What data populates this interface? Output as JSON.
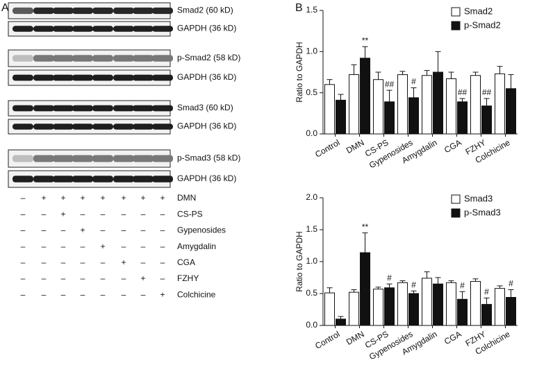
{
  "panel_labels": [
    "A",
    "B"
  ],
  "blots": [
    "Smad2 (60 kD)",
    "GAPDH (36 kD)",
    "p-Smad2 (58 kD)",
    "GAPDH (36 kD)",
    "Smad3 (60 kD)",
    "GAPDH (36 kD)",
    "p-Smad3 (58 kD)",
    "GAPDH (36 kD)"
  ],
  "treatments": [
    {
      "label": "DMN",
      "signs": [
        "–",
        "+",
        "+",
        "+",
        "+",
        "+",
        "+",
        "+"
      ]
    },
    {
      "label": "CS-PS",
      "signs": [
        "–",
        "–",
        "+",
        "–",
        "–",
        "–",
        "–",
        "–"
      ]
    },
    {
      "label": "Gypenosides",
      "signs": [
        "–",
        "–",
        "–",
        "+",
        "–",
        "–",
        "–",
        "–"
      ]
    },
    {
      "label": "Amygdalin",
      "signs": [
        "–",
        "–",
        "–",
        "–",
        "+",
        "–",
        "–",
        "–"
      ]
    },
    {
      "label": "CGA",
      "signs": [
        "–",
        "–",
        "–",
        "–",
        "–",
        "+",
        "–",
        "–"
      ]
    },
    {
      "label": "FZHY",
      "signs": [
        "–",
        "–",
        "–",
        "–",
        "–",
        "–",
        "+",
        "–"
      ]
    },
    {
      "label": "Colchicine",
      "signs": [
        "–",
        "–",
        "–",
        "–",
        "–",
        "–",
        "–",
        "+"
      ]
    }
  ],
  "chart_data": [
    {
      "type": "bar",
      "y_label": "Ratio to GAPDH",
      "categories": [
        "Control",
        "DMN",
        "CS-PS",
        "Gypenosides",
        "Amygdalin",
        "CGA",
        "FZHY",
        "Colchicine"
      ],
      "ylim": [
        0,
        1.5
      ],
      "yticks": [
        {
          "value": 0,
          "label": "0.0"
        },
        0.5,
        {
          "value": 1,
          "label": "1.0"
        },
        1.5
      ],
      "legend": "top-right",
      "series": [
        {
          "name": "Smad2",
          "color": "#ffffff",
          "values": [
            0.6,
            0.72,
            0.66,
            0.72,
            0.71,
            0.67,
            0.71,
            0.73
          ],
          "errors": [
            0.06,
            0.12,
            0.09,
            0.04,
            0.06,
            0.08,
            0.04,
            0.09
          ]
        },
        {
          "name": "p-Smad2",
          "color": "#111111",
          "values": [
            0.41,
            0.92,
            0.39,
            0.44,
            0.75,
            0.39,
            0.34,
            0.55
          ],
          "errors": [
            0.07,
            0.14,
            0.14,
            0.12,
            0.25,
            0.04,
            0.09,
            0.17
          ],
          "annotations": [
            null,
            "**",
            "##",
            "#",
            null,
            "##",
            "##",
            null
          ]
        }
      ]
    },
    {
      "type": "bar",
      "y_label": "Ratio to GAPDH",
      "categories": [
        "Control",
        "DMN",
        "CS-PS",
        "Gypenosides",
        "Amygdalin",
        "CGA",
        "FZHY",
        "Colchicine"
      ],
      "ylim": [
        0,
        2
      ],
      "yticks": [
        {
          "value": 0,
          "label": "0.0"
        },
        0.5,
        {
          "value": 1,
          "label": "1.0"
        },
        1.5,
        {
          "value": 2,
          "label": "2.0"
        }
      ],
      "legend": "top-right",
      "series": [
        {
          "name": "Smad3",
          "color": "#ffffff",
          "values": [
            0.51,
            0.52,
            0.57,
            0.67,
            0.74,
            0.67,
            0.69,
            0.58
          ],
          "errors": [
            0.08,
            0.04,
            0.03,
            0.03,
            0.1,
            0.03,
            0.04,
            0.04
          ]
        },
        {
          "name": "p-Smad3",
          "color": "#111111",
          "values": [
            0.1,
            1.14,
            0.59,
            0.5,
            0.65,
            0.41,
            0.33,
            0.44
          ],
          "errors": [
            0.04,
            0.31,
            0.06,
            0.04,
            0.1,
            0.12,
            0.1,
            0.12
          ],
          "annotations": [
            null,
            "**",
            "#",
            "#",
            null,
            "#",
            "#",
            "#"
          ]
        }
      ]
    }
  ]
}
